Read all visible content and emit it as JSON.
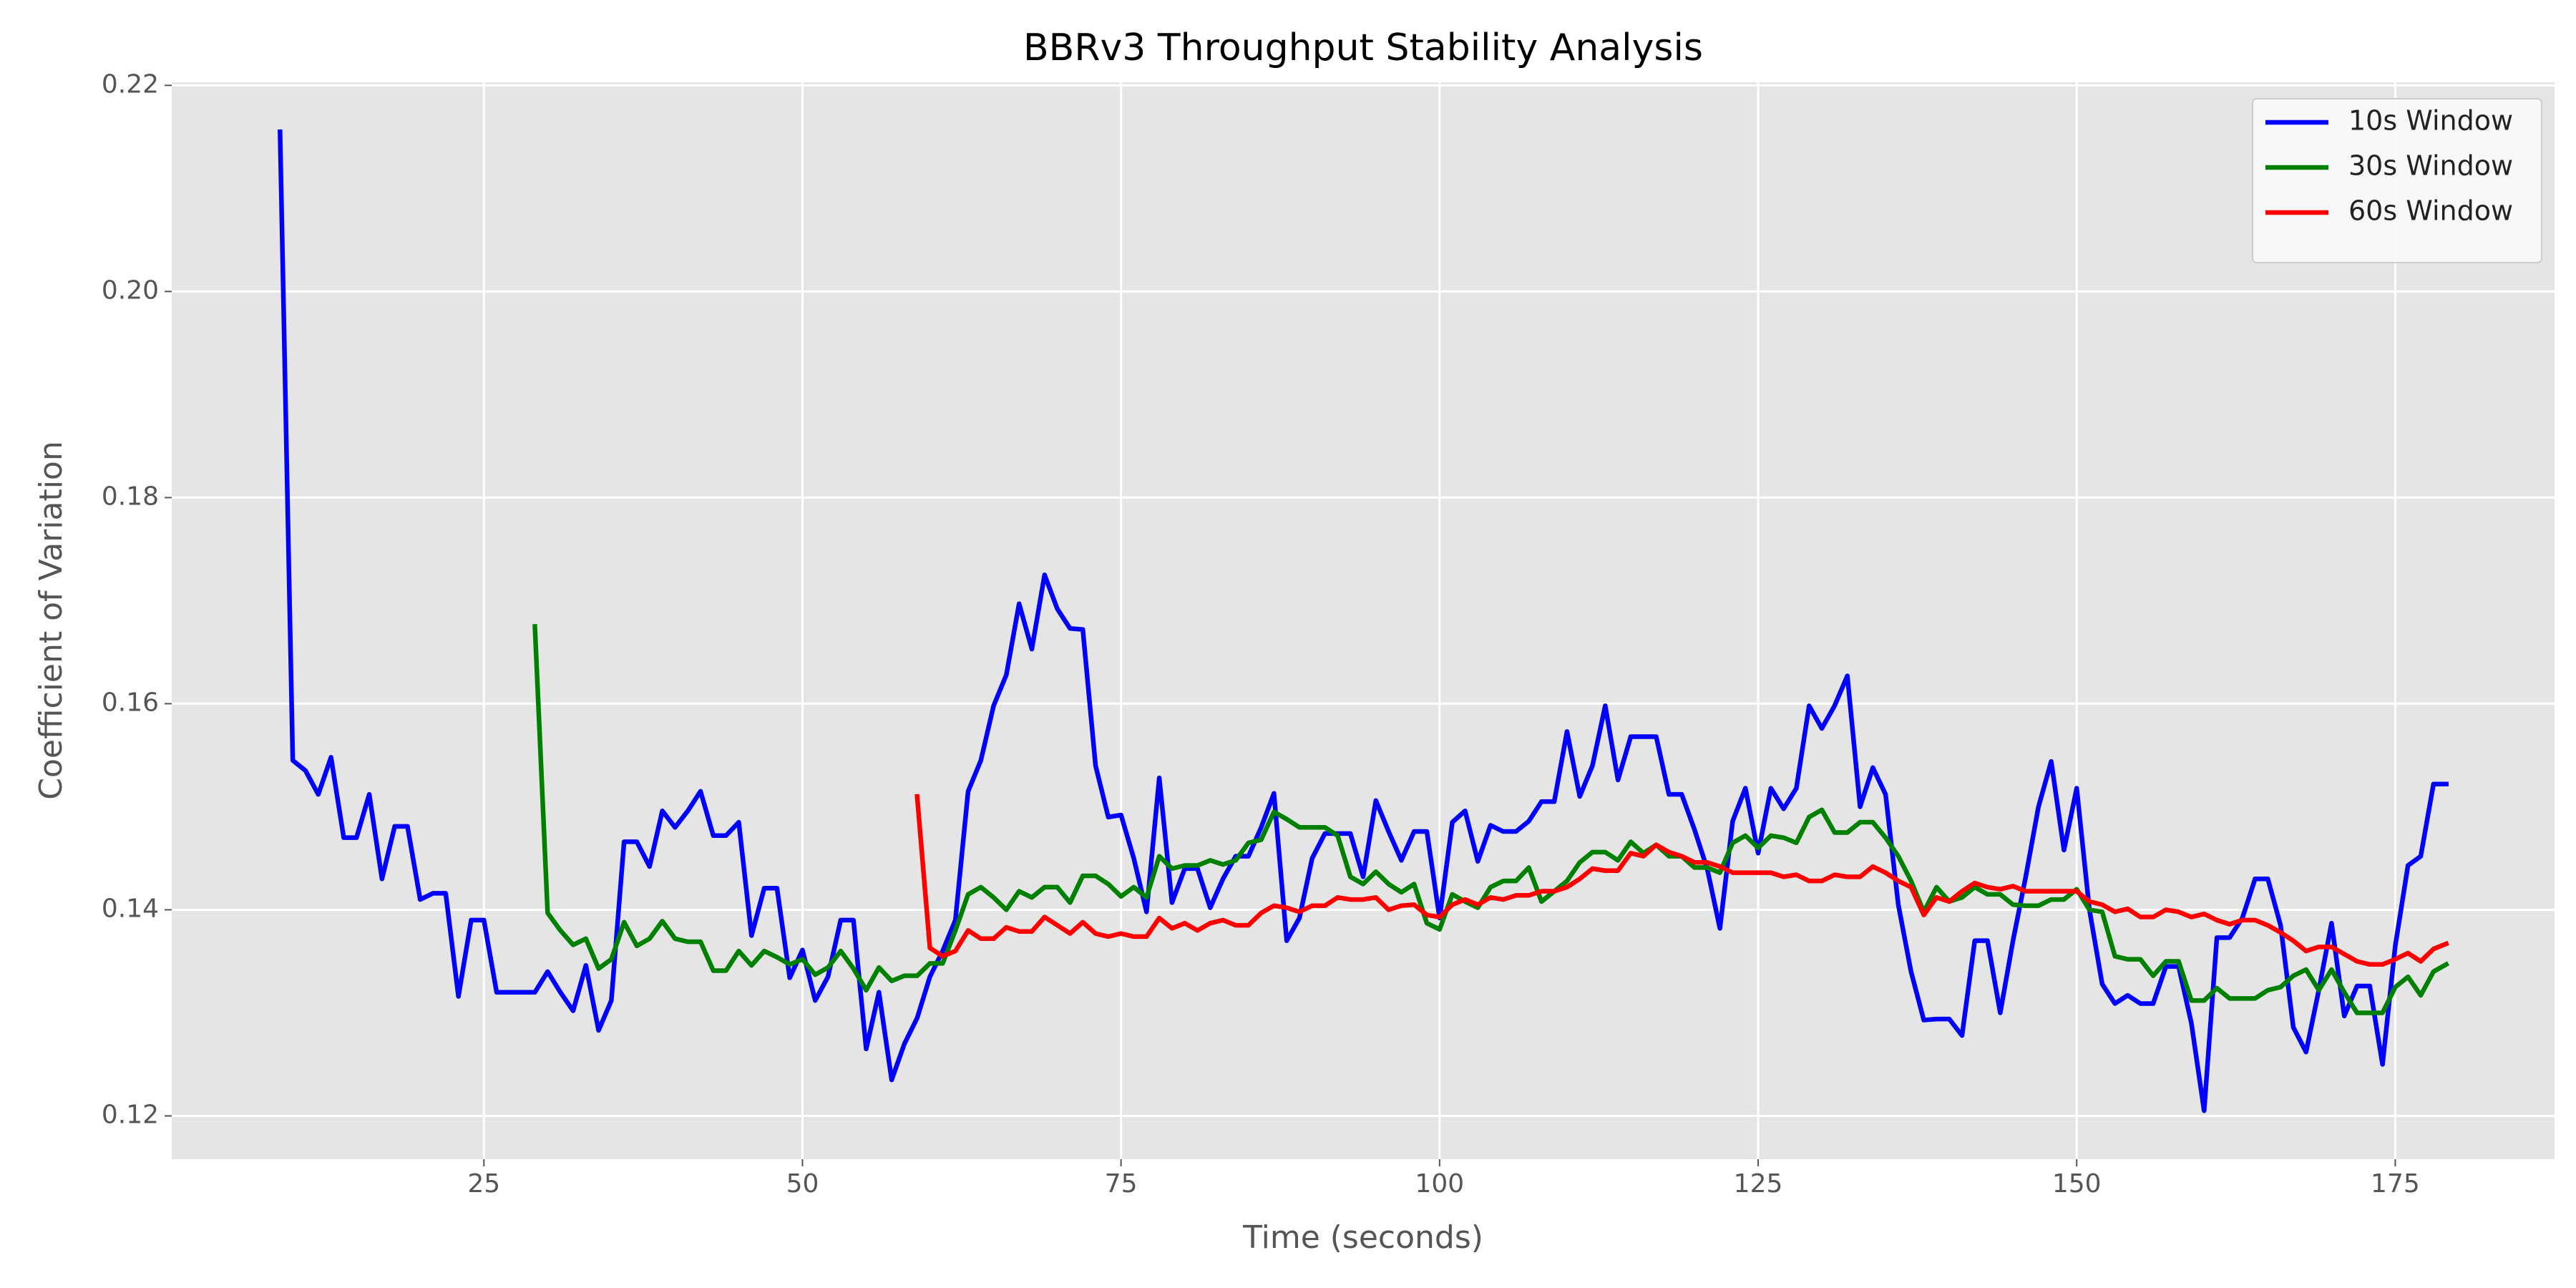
{
  "chart_data": {
    "type": "line",
    "title": "BBRv3 Throughput Stability Analysis",
    "x_label": "Time (seconds)",
    "y_label": "Coefficient of Variation",
    "x": [
      9,
      10,
      11,
      12,
      13,
      14,
      15,
      16,
      17,
      18,
      19,
      20,
      21,
      22,
      23,
      24,
      25,
      26,
      27,
      28,
      29,
      30,
      31,
      32,
      33,
      34,
      35,
      36,
      37,
      38,
      39,
      40,
      41,
      42,
      43,
      44,
      45,
      46,
      47,
      48,
      49,
      50,
      51,
      52,
      53,
      54,
      55,
      56,
      57,
      58,
      59,
      60,
      61,
      62,
      63,
      64,
      65,
      66,
      67,
      68,
      69,
      70,
      71,
      72,
      73,
      74,
      75,
      76,
      77,
      78,
      79,
      80,
      81,
      82,
      83,
      84,
      85,
      86,
      87,
      88,
      89,
      90,
      91,
      92,
      93,
      94,
      95,
      96,
      97,
      98,
      99,
      100,
      101,
      102,
      103,
      104,
      105,
      106,
      107,
      108,
      109,
      110,
      111,
      112,
      113,
      114,
      115,
      116,
      117,
      118,
      119,
      120,
      121,
      122,
      123,
      124,
      125,
      126,
      127,
      128,
      129,
      130,
      131,
      132,
      133,
      134,
      135,
      136,
      137,
      138,
      139,
      140,
      141,
      142,
      143,
      144,
      145,
      146,
      147,
      148,
      149,
      150,
      151,
      152,
      153,
      154,
      155,
      156,
      157,
      158,
      159,
      160,
      161,
      162,
      163,
      164,
      165,
      166,
      167,
      168,
      169,
      170,
      171,
      172,
      173,
      174,
      175,
      176,
      177,
      178,
      179
    ],
    "series": [
      {
        "name": "10s Window",
        "color": "#0000ff",
        "values": [
          0.2155,
          0.1545,
          0.1535,
          0.1512,
          0.1548,
          0.147,
          0.147,
          0.1512,
          0.143,
          0.1481,
          0.1481,
          0.141,
          0.1416,
          0.1416,
          0.1316,
          0.139,
          0.139,
          0.132,
          0.132,
          0.132,
          0.132,
          0.134,
          0.132,
          0.1302,
          0.1346,
          0.1283,
          0.1312,
          0.1466,
          0.1466,
          0.1442,
          0.1496,
          0.148,
          0.1496,
          0.1515,
          0.1472,
          0.1472,
          0.1485,
          0.1375,
          0.1421,
          0.1421,
          0.1334,
          0.1361,
          0.1312,
          0.1335,
          0.139,
          0.139,
          0.1265,
          0.132,
          0.1235,
          0.127,
          0.1295,
          0.1335,
          0.136,
          0.139,
          0.1515,
          0.1545,
          0.1598,
          0.1628,
          0.1697,
          0.1653,
          0.1725,
          0.1692,
          0.1673,
          0.1672,
          0.154,
          0.149,
          0.1492,
          0.145,
          0.1398,
          0.1528,
          0.1407,
          0.144,
          0.144,
          0.1402,
          0.143,
          0.1452,
          0.1452,
          0.148,
          0.1513,
          0.137,
          0.1392,
          0.145,
          0.1474,
          0.1474,
          0.1474,
          0.1432,
          0.1506,
          0.1476,
          0.1448,
          0.1476,
          0.1476,
          0.1392,
          0.1485,
          0.1496,
          0.1447,
          0.1482,
          0.1476,
          0.1476,
          0.1486,
          0.1505,
          0.1505,
          0.1573,
          0.151,
          0.154,
          0.1598,
          0.1526,
          0.1568,
          0.1568,
          0.1568,
          0.1512,
          0.1512,
          0.1478,
          0.144,
          0.1382,
          0.1486,
          0.1518,
          0.1455,
          0.1518,
          0.1498,
          0.1518,
          0.1598,
          0.1576,
          0.1598,
          0.1627,
          0.15,
          0.1538,
          0.1512,
          0.1405,
          0.134,
          0.1293,
          0.1294,
          0.1294,
          0.1278,
          0.137,
          0.137,
          0.13,
          0.137,
          0.1432,
          0.15,
          0.1544,
          0.1458,
          0.1518,
          0.14,
          0.1328,
          0.1309,
          0.1317,
          0.1309,
          0.1309,
          0.1345,
          0.1345,
          0.129,
          0.1205,
          0.1373,
          0.1373,
          0.1392,
          0.143,
          0.143,
          0.1385,
          0.1286,
          0.1262,
          0.1322,
          0.1387,
          0.1297,
          0.1326,
          0.1326,
          0.125,
          0.1365,
          0.1443,
          0.1452,
          0.1522,
          0.1522
        ]
      },
      {
        "name": "30s Window",
        "color": "#008000",
        "values": [
          null,
          null,
          null,
          null,
          null,
          null,
          null,
          null,
          null,
          null,
          null,
          null,
          null,
          null,
          null,
          null,
          null,
          null,
          null,
          null,
          0.1675,
          0.1397,
          0.138,
          0.1366,
          0.1372,
          0.1343,
          0.1352,
          0.1388,
          0.1365,
          0.1372,
          0.1389,
          0.1372,
          0.1369,
          0.1369,
          0.1341,
          0.1341,
          0.136,
          0.1346,
          0.136,
          0.1354,
          0.1347,
          0.1352,
          0.1337,
          0.1344,
          0.136,
          0.1343,
          0.1322,
          0.1344,
          0.1331,
          0.1336,
          0.1336,
          0.1348,
          0.1348,
          0.138,
          0.1415,
          0.1422,
          0.1412,
          0.14,
          0.1418,
          0.1412,
          0.1422,
          0.1422,
          0.1407,
          0.1433,
          0.1433,
          0.1425,
          0.1413,
          0.1422,
          0.1412,
          0.1452,
          0.144,
          0.1443,
          0.1443,
          0.1448,
          0.1444,
          0.1448,
          0.1465,
          0.1468,
          0.1495,
          0.1488,
          0.148,
          0.148,
          0.148,
          0.1472,
          0.1432,
          0.1425,
          0.1437,
          0.1425,
          0.1417,
          0.1425,
          0.1387,
          0.1381,
          0.1415,
          0.1408,
          0.1402,
          0.1422,
          0.1428,
          0.1428,
          0.1441,
          0.1408,
          0.1418,
          0.1428,
          0.1446,
          0.1456,
          0.1456,
          0.1448,
          0.1466,
          0.1455,
          0.1463,
          0.1452,
          0.1452,
          0.1441,
          0.1441,
          0.1436,
          0.1465,
          0.1472,
          0.146,
          0.1472,
          0.147,
          0.1465,
          0.149,
          0.1497,
          0.1475,
          0.1475,
          0.1485,
          0.1485,
          0.147,
          0.1452,
          0.1428,
          0.1398,
          0.1422,
          0.1408,
          0.1412,
          0.1422,
          0.1415,
          0.1415,
          0.1405,
          0.1404,
          0.1404,
          0.141,
          0.141,
          0.142,
          0.14,
          0.1398,
          0.1355,
          0.1352,
          0.1352,
          0.1336,
          0.135,
          0.135,
          0.1312,
          0.1312,
          0.1324,
          0.1314,
          0.1314,
          0.1314,
          0.1322,
          0.1325,
          0.1336,
          0.1342,
          0.1322,
          0.1342,
          0.132,
          0.13,
          0.13,
          0.13,
          0.1325,
          0.1335,
          0.1317,
          0.134,
          0.1347
        ]
      },
      {
        "name": "60s Window",
        "color": "#ff0000",
        "values": [
          null,
          null,
          null,
          null,
          null,
          null,
          null,
          null,
          null,
          null,
          null,
          null,
          null,
          null,
          null,
          null,
          null,
          null,
          null,
          null,
          null,
          null,
          null,
          null,
          null,
          null,
          null,
          null,
          null,
          null,
          null,
          null,
          null,
          null,
          null,
          null,
          null,
          null,
          null,
          null,
          null,
          null,
          null,
          null,
          null,
          null,
          null,
          null,
          null,
          null,
          0.151,
          0.1363,
          0.1355,
          0.136,
          0.138,
          0.1372,
          0.1372,
          0.1383,
          0.1379,
          0.1379,
          0.1393,
          0.1385,
          0.1377,
          0.1388,
          0.1377,
          0.1374,
          0.1377,
          0.1374,
          0.1374,
          0.1392,
          0.1382,
          0.1387,
          0.138,
          0.1387,
          0.139,
          0.1385,
          0.1385,
          0.1397,
          0.1404,
          0.1402,
          0.1398,
          0.1404,
          0.1404,
          0.1412,
          0.141,
          0.141,
          0.1412,
          0.14,
          0.1404,
          0.1405,
          0.1395,
          0.1393,
          0.1405,
          0.141,
          0.1405,
          0.1412,
          0.141,
          0.1414,
          0.1414,
          0.1418,
          0.1418,
          0.1422,
          0.143,
          0.144,
          0.1438,
          0.1438,
          0.1455,
          0.1452,
          0.1463,
          0.1456,
          0.1452,
          0.1446,
          0.1446,
          0.1442,
          0.1436,
          0.1436,
          0.1436,
          0.1436,
          0.1432,
          0.1434,
          0.1428,
          0.1428,
          0.1434,
          0.1432,
          0.1432,
          0.1442,
          0.1436,
          0.1428,
          0.1422,
          0.1395,
          0.1412,
          0.1408,
          0.1418,
          0.1426,
          0.1422,
          0.142,
          0.1423,
          0.1418,
          0.1418,
          0.1418,
          0.1418,
          0.1418,
          0.1408,
          0.1405,
          0.1398,
          0.1401,
          0.1393,
          0.1393,
          0.14,
          0.1398,
          0.1393,
          0.1396,
          0.139,
          0.1386,
          0.139,
          0.139,
          0.1385,
          0.1378,
          0.137,
          0.136,
          0.1364,
          0.1364,
          0.1357,
          0.135,
          0.1347,
          0.1347,
          0.1352,
          0.1358,
          0.135,
          0.1362,
          0.1367
        ]
      }
    ],
    "xlim": [
      0.5,
      187.5
    ],
    "ylim": [
      0.1158,
      0.2203
    ],
    "xticks": [
      25,
      50,
      75,
      100,
      125,
      150,
      175
    ],
    "yticks": [
      0.12,
      0.14,
      0.16,
      0.18,
      {
        "value": 0.2,
        "label": "0.20"
      },
      0.22
    ],
    "grid": true,
    "legend": "upper right"
  }
}
